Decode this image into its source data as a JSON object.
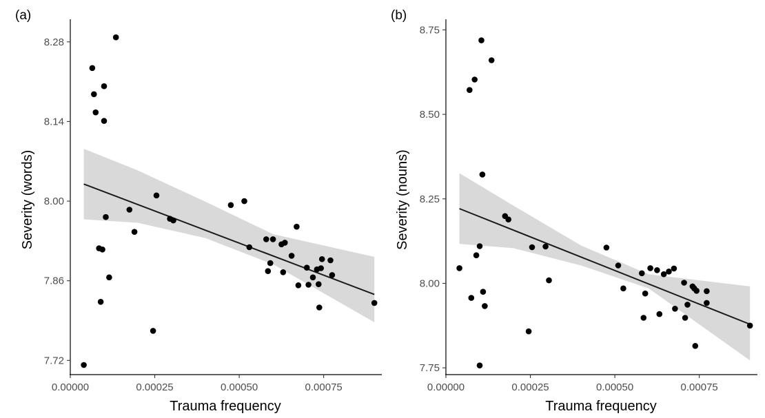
{
  "chart_data": [
    {
      "type": "scatter",
      "panel_label": "(a)",
      "xlabel": "Trauma frequency",
      "ylabel": "Severity (words)",
      "xlim": [
        0,
        0.00092
      ],
      "ylim": [
        7.695,
        8.31
      ],
      "xticks": [
        0,
        0.00025,
        0.0005,
        0.00075
      ],
      "xtick_labels": [
        "0.00000",
        "0.00025",
        "0.00050",
        "0.00075"
      ],
      "yticks": [
        7.72,
        7.86,
        8.0,
        8.14,
        8.28
      ],
      "ytick_labels": [
        "7.72",
        "7.86",
        "8.00",
        "8.14",
        "8.28"
      ],
      "grid": false,
      "points": [
        [
          4e-05,
          7.712
        ],
        [
          6.5e-05,
          8.234
        ],
        [
          7e-05,
          8.188
        ],
        [
          7.5e-05,
          8.156
        ],
        [
          8.5e-05,
          7.917
        ],
        [
          9e-05,
          7.823
        ],
        [
          9.5e-05,
          7.915
        ],
        [
          0.0001,
          8.141
        ],
        [
          0.0001,
          8.202
        ],
        [
          0.000105,
          7.972
        ],
        [
          0.000115,
          7.866
        ],
        [
          0.000135,
          8.288
        ],
        [
          0.000175,
          7.985
        ],
        [
          0.00019,
          7.946
        ],
        [
          0.000245,
          7.772
        ],
        [
          0.000255,
          8.01
        ],
        [
          0.000295,
          7.969
        ],
        [
          0.000305,
          7.966
        ],
        [
          0.000475,
          7.993
        ],
        [
          0.000515,
          8.0
        ],
        [
          0.00053,
          7.919
        ],
        [
          0.00058,
          7.933
        ],
        [
          0.000585,
          7.877
        ],
        [
          0.000592,
          7.891
        ],
        [
          0.0006,
          7.933
        ],
        [
          0.000625,
          7.924
        ],
        [
          0.00063,
          7.875
        ],
        [
          0.000635,
          7.927
        ],
        [
          0.000655,
          7.904
        ],
        [
          0.00067,
          7.955
        ],
        [
          0.000675,
          7.852
        ],
        [
          0.0007,
          7.883
        ],
        [
          0.000705,
          7.853
        ],
        [
          0.000718,
          7.866
        ],
        [
          0.00073,
          7.88
        ],
        [
          0.000735,
          7.854
        ],
        [
          0.000737,
          7.813
        ],
        [
          0.000742,
          7.882
        ],
        [
          0.000745,
          7.898
        ],
        [
          0.00077,
          7.896
        ],
        [
          0.000775,
          7.87
        ],
        [
          0.0009,
          7.821
        ]
      ],
      "fit": {
        "x": [
          4e-05,
          0.0009
        ],
        "y": [
          8.03,
          7.836
        ]
      },
      "ci_band": {
        "x": [
          4e-05,
          0.0002,
          0.0004,
          0.0006,
          0.0009
        ],
        "lower": [
          7.968,
          7.962,
          7.935,
          7.889,
          7.787
        ],
        "upper": [
          8.092,
          8.054,
          7.999,
          7.942,
          7.902
        ]
      },
      "point_color": "#000000",
      "line_color": "#1a1a1a",
      "band_color": "#d9d9d9"
    },
    {
      "type": "scatter",
      "panel_label": "(b)",
      "xlabel": "Trauma frequency",
      "ylabel": "Severity (nouns)",
      "xlim": [
        0,
        0.00092
      ],
      "ylim": [
        7.73,
        8.765
      ],
      "xticks": [
        0,
        0.00025,
        0.0005,
        0.00075
      ],
      "xtick_labels": [
        "0.00000",
        "0.00025",
        "0.00050",
        "0.00075"
      ],
      "yticks": [
        7.75,
        8.0,
        8.25,
        8.5,
        8.75
      ],
      "ytick_labels": [
        "7.75",
        "8.00",
        "8.25",
        "8.50",
        "8.75"
      ],
      "grid": false,
      "points": [
        [
          4e-05,
          8.045
        ],
        [
          7e-05,
          8.572
        ],
        [
          7.5e-05,
          7.957
        ],
        [
          8.5e-05,
          8.603
        ],
        [
          9e-05,
          8.083
        ],
        [
          0.0001,
          7.757
        ],
        [
          0.0001,
          8.11
        ],
        [
          0.000105,
          8.719
        ],
        [
          0.000108,
          8.322
        ],
        [
          0.00011,
          7.975
        ],
        [
          0.000115,
          7.933
        ],
        [
          0.000135,
          8.66
        ],
        [
          0.000175,
          8.199
        ],
        [
          0.000185,
          8.189
        ],
        [
          0.000245,
          7.858
        ],
        [
          0.000255,
          8.107
        ],
        [
          0.000295,
          8.109
        ],
        [
          0.000305,
          8.009
        ],
        [
          0.000475,
          8.106
        ],
        [
          0.00051,
          8.053
        ],
        [
          0.000525,
          7.985
        ],
        [
          0.00058,
          8.03
        ],
        [
          0.000585,
          7.898
        ],
        [
          0.00059,
          7.97
        ],
        [
          0.000605,
          8.045
        ],
        [
          0.000625,
          8.039
        ],
        [
          0.000632,
          7.909
        ],
        [
          0.000645,
          8.027
        ],
        [
          0.00066,
          8.035
        ],
        [
          0.000675,
          8.044
        ],
        [
          0.000678,
          7.925
        ],
        [
          0.000705,
          8.002
        ],
        [
          0.000708,
          7.898
        ],
        [
          0.000715,
          7.937
        ],
        [
          0.00073,
          7.991
        ],
        [
          0.000735,
          7.985
        ],
        [
          0.000738,
          7.815
        ],
        [
          0.000742,
          7.978
        ],
        [
          0.000772,
          7.977
        ],
        [
          0.000772,
          7.942
        ],
        [
          0.0009,
          7.875
        ]
      ],
      "fit": {
        "x": [
          4e-05,
          0.0009
        ],
        "y": [
          8.221,
          7.879
        ]
      },
      "ci_band": {
        "x": [
          4e-05,
          0.0002,
          0.0004,
          0.0006,
          0.0009
        ],
        "lower": [
          8.117,
          8.104,
          8.053,
          7.985,
          7.772
        ],
        "upper": [
          8.326,
          8.23,
          8.112,
          8.027,
          7.991
        ]
      },
      "point_color": "#000000",
      "line_color": "#1a1a1a",
      "band_color": "#d9d9d9"
    }
  ]
}
